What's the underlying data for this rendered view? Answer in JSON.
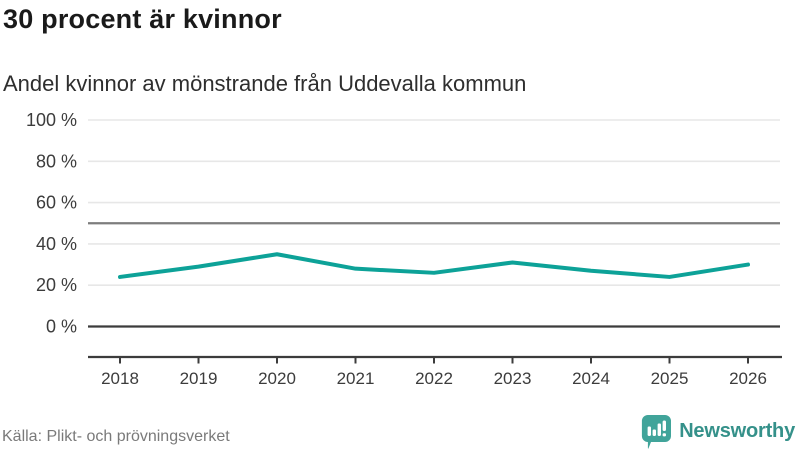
{
  "header": {
    "title": "30 procent är kvinnor",
    "subtitle": "Andel kvinnor av mönstrande från Uddevalla kommun"
  },
  "chart_data": {
    "type": "line",
    "x": [
      2018,
      2019,
      2020,
      2021,
      2022,
      2023,
      2024,
      2025,
      2026
    ],
    "xtick_labels": [
      "2018",
      "2019",
      "2020",
      "2021",
      "2022",
      "2023",
      "2024",
      "2025",
      "2026"
    ],
    "series": [
      {
        "name": "Andel kvinnor av mönstrande",
        "values": [
          24,
          29,
          35,
          28,
          26,
          31,
          27,
          24,
          30
        ]
      }
    ],
    "title": "30 procent är kvinnor",
    "subtitle": "Andel kvinnor av mönstrande från Uddevalla kommun",
    "xlabel": "",
    "ylabel": "",
    "ylim": [
      0,
      100
    ],
    "yticks": [
      0,
      20,
      40,
      60,
      80,
      100
    ],
    "ytick_labels": [
      "0 %",
      "20 %",
      "40 %",
      "60 %",
      "80 %",
      "100 %"
    ],
    "reference_line_y": 50,
    "grid": true,
    "legend": "none",
    "colors": {
      "line": "#0da298",
      "gridline": "#e7e7e7",
      "zero_line": "#3c3c3c",
      "reference_line": "#7d7d7d",
      "axis": "#3c3c3c",
      "tick_text": "#3c3c3c"
    }
  },
  "footer": {
    "source": "Källa: Plikt- och prövningsverket",
    "brand": "Newsworthy",
    "brand_color": "#35918a",
    "logo_icon": "bar-chart-speech-bubble",
    "logo_color": "#41a49a"
  }
}
